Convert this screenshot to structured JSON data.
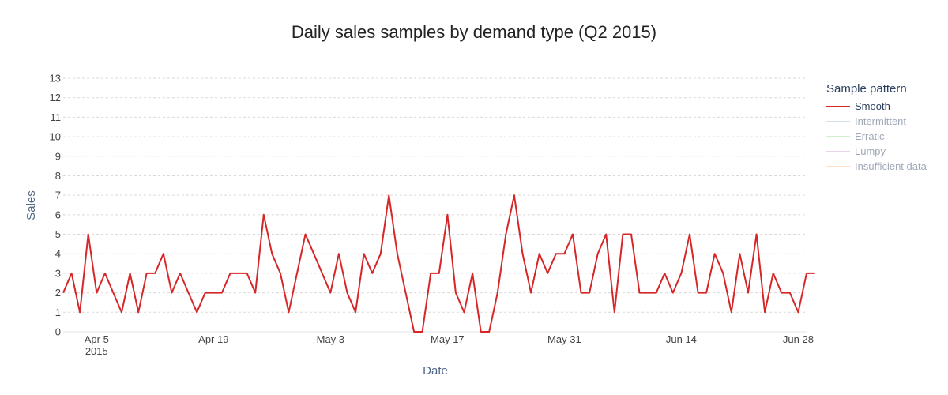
{
  "chart_data": {
    "type": "line",
    "title": "Daily sales samples by demand type (Q2 2015)",
    "xlabel": "Date",
    "ylabel": "Sales",
    "x_start": "2015-04-01",
    "x_end": "2015-06-29",
    "ylim": [
      0,
      13
    ],
    "yticks": [
      "0",
      "1",
      "2",
      "3",
      "4",
      "5",
      "6",
      "7",
      "8",
      "9",
      "10",
      "11",
      "12",
      "13"
    ],
    "xticks": [
      {
        "date": "2015-04-05",
        "label": "Apr 5",
        "sublabel": "2015"
      },
      {
        "date": "2015-04-19",
        "label": "Apr 19"
      },
      {
        "date": "2015-05-03",
        "label": "May 3"
      },
      {
        "date": "2015-05-17",
        "label": "May 17"
      },
      {
        "date": "2015-05-31",
        "label": "May 31"
      },
      {
        "date": "2015-06-14",
        "label": "Jun 14"
      },
      {
        "date": "2015-06-28",
        "label": "Jun 28"
      }
    ],
    "grid": true,
    "legend_title": "Sample pattern",
    "legend_placement": "right",
    "series": [
      {
        "name": "Smooth",
        "color": "#d62728",
        "visible": true,
        "values": [
          2,
          3,
          1,
          5,
          2,
          3,
          2,
          1,
          3,
          1,
          3,
          3,
          4,
          2,
          3,
          2,
          1,
          2,
          2,
          2,
          3,
          3,
          3,
          2,
          6,
          4,
          3,
          1,
          3,
          5,
          4,
          3,
          2,
          4,
          2,
          1,
          4,
          3,
          4,
          7,
          4,
          2,
          0,
          0,
          3,
          3,
          6,
          2,
          1,
          3,
          0,
          0,
          2,
          5,
          7,
          4,
          2,
          4,
          3,
          4,
          4,
          5,
          2,
          2,
          4,
          5,
          1,
          5,
          5,
          2,
          2,
          2,
          3,
          2,
          3,
          5,
          2,
          2,
          4,
          3,
          1,
          4,
          2,
          5,
          1,
          3,
          2,
          2,
          1,
          3,
          3
        ]
      },
      {
        "name": "Intermittent",
        "color": "#a6c3e0",
        "visible": false,
        "values": []
      },
      {
        "name": "Erratic",
        "color": "#a8dba0",
        "visible": false,
        "values": []
      },
      {
        "name": "Lumpy",
        "color": "#d7a8dc",
        "visible": false,
        "values": []
      },
      {
        "name": "Insufficient data",
        "color": "#fdc08c",
        "visible": false,
        "values": []
      }
    ]
  }
}
